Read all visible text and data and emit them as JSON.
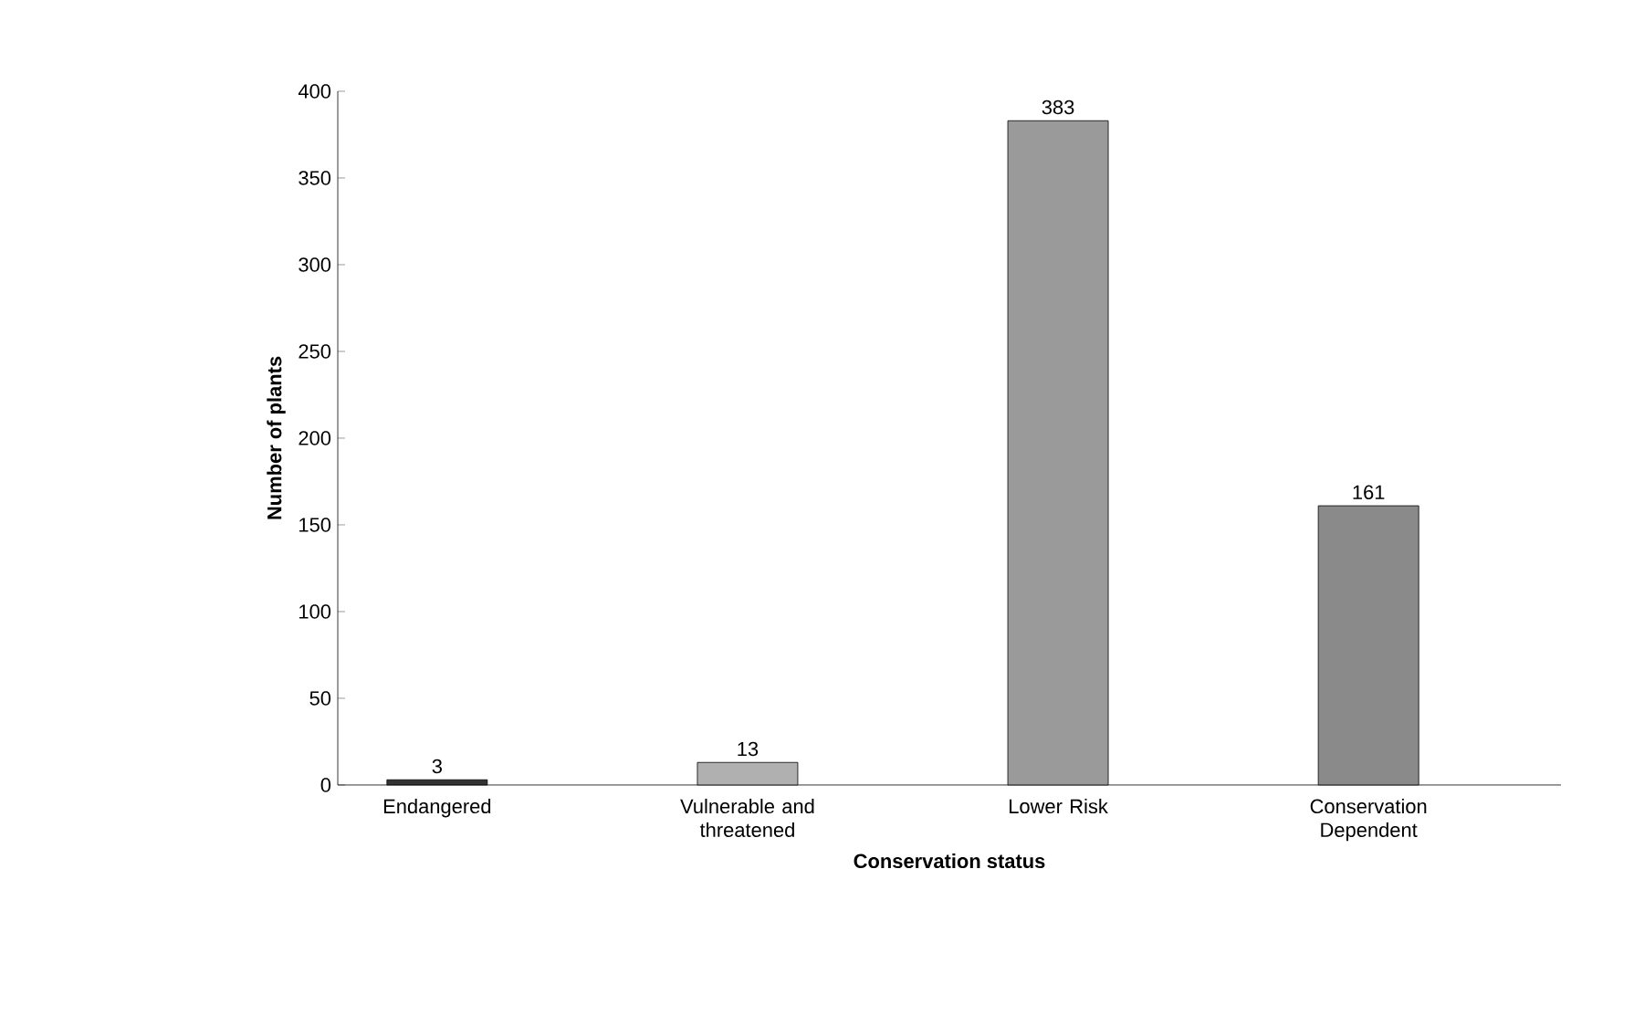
{
  "chart_data": {
    "type": "bar",
    "xlabel": "Conservation status",
    "ylabel": "Number of plants",
    "categories": [
      "Endangered",
      "Vulnerable and threatened",
      "Lower Risk",
      "Conservation Dependent"
    ],
    "values": [
      3,
      13,
      383,
      161
    ],
    "colors": [
      "#333333",
      "#b0b0b0",
      "#9a9a9a",
      "#8a8a8a"
    ],
    "ylim": [
      0,
      400
    ],
    "yticks": [
      0,
      50,
      100,
      150,
      200,
      250,
      300,
      350,
      400
    ],
    "data_labels": true
  }
}
